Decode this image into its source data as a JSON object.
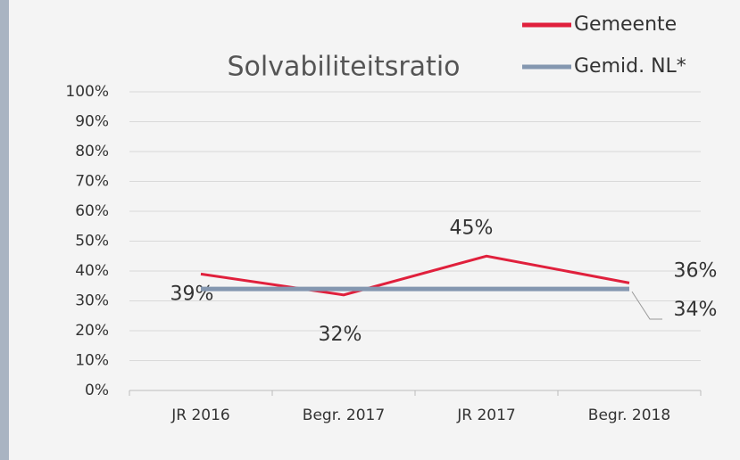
{
  "chart_data": {
    "type": "line",
    "title": "Solvabiliteitsratio",
    "categories": [
      "JR 2016",
      "Begr. 2017",
      "JR 2017",
      "Begr. 2018"
    ],
    "series": [
      {
        "name": "Gemeente",
        "color": "#e0203c",
        "values": [
          39,
          32,
          45,
          36
        ],
        "value_labels": [
          "39%",
          "32%",
          "45%",
          "36%"
        ]
      },
      {
        "name": "Gemid. NL*",
        "color": "#8497b0",
        "values": [
          34,
          34,
          34,
          34
        ],
        "value_labels": [
          null,
          null,
          null,
          "34%"
        ]
      }
    ],
    "ylim": [
      0,
      100
    ],
    "yticks": [
      {
        "value": 0,
        "label": "0%"
      },
      {
        "value": 10,
        "label": "10%"
      },
      {
        "value": 20,
        "label": "20%"
      },
      {
        "value": 30,
        "label": "30%"
      },
      {
        "value": 40,
        "label": "40%"
      },
      {
        "value": 50,
        "label": "50%"
      },
      {
        "value": 60,
        "label": "60%"
      },
      {
        "value": 70,
        "label": "70%"
      },
      {
        "value": 80,
        "label": "80%"
      },
      {
        "value": 90,
        "label": "90%"
      },
      {
        "value": 100,
        "label": "100%"
      }
    ],
    "grid": true,
    "legend": "top-right"
  }
}
